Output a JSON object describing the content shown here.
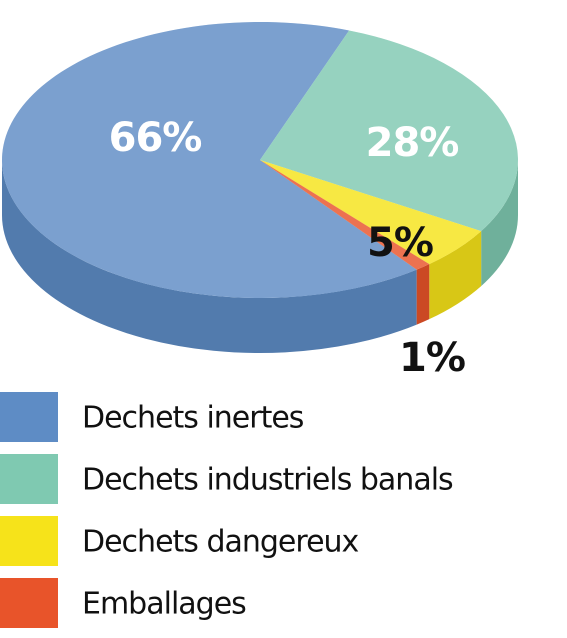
{
  "chart_data": {
    "type": "pie",
    "categories": [
      "Dechets inertes",
      "Dechets industriels banals",
      "Dechets dangereux",
      "Emballages"
    ],
    "values": [
      66,
      28,
      5,
      1
    ],
    "value_labels": [
      "66%",
      "28%",
      "5%",
      "1%"
    ],
    "colors": [
      "#5e8cc5",
      "#7fc9b1",
      "#f6e31a",
      "#e8542a"
    ]
  }
}
